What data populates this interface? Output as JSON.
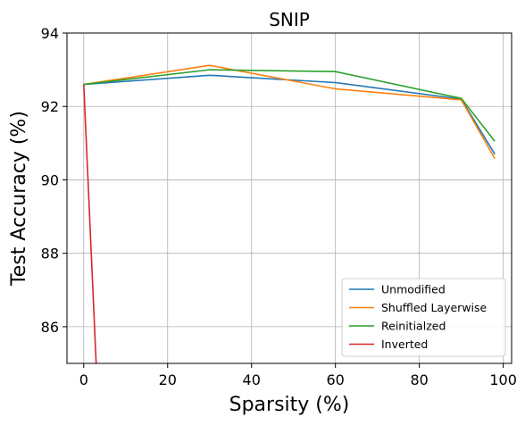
{
  "chart_data": {
    "type": "line",
    "title": "SNIP",
    "xlabel": "Sparsity (%)",
    "ylabel": "Test Accuracy (%)",
    "xlim": [
      -4,
      102
    ],
    "ylim": [
      85,
      94
    ],
    "xticks": [
      0,
      20,
      40,
      60,
      80,
      100
    ],
    "yticks": [
      86,
      88,
      90,
      92,
      94
    ],
    "grid": true,
    "legend_position": "lower-right",
    "series": [
      {
        "name": "Unmodified",
        "color": "#1f77b4",
        "x": [
          0,
          30,
          60,
          90,
          98
        ],
        "y": [
          92.6,
          92.85,
          92.65,
          92.2,
          90.7
        ]
      },
      {
        "name": "Shuffled Layerwise",
        "color": "#ff7f0e",
        "x": [
          0,
          30,
          60,
          90,
          98
        ],
        "y": [
          92.6,
          93.12,
          92.48,
          92.18,
          90.58
        ]
      },
      {
        "name": "Reinitialzed",
        "color": "#2ca02c",
        "x": [
          0,
          30,
          60,
          90,
          98
        ],
        "y": [
          92.6,
          93.0,
          92.95,
          92.22,
          91.05
        ]
      },
      {
        "name": "Inverted",
        "color": "#d62728",
        "x": [
          0,
          3
        ],
        "y": [
          92.6,
          84.9
        ]
      }
    ]
  }
}
